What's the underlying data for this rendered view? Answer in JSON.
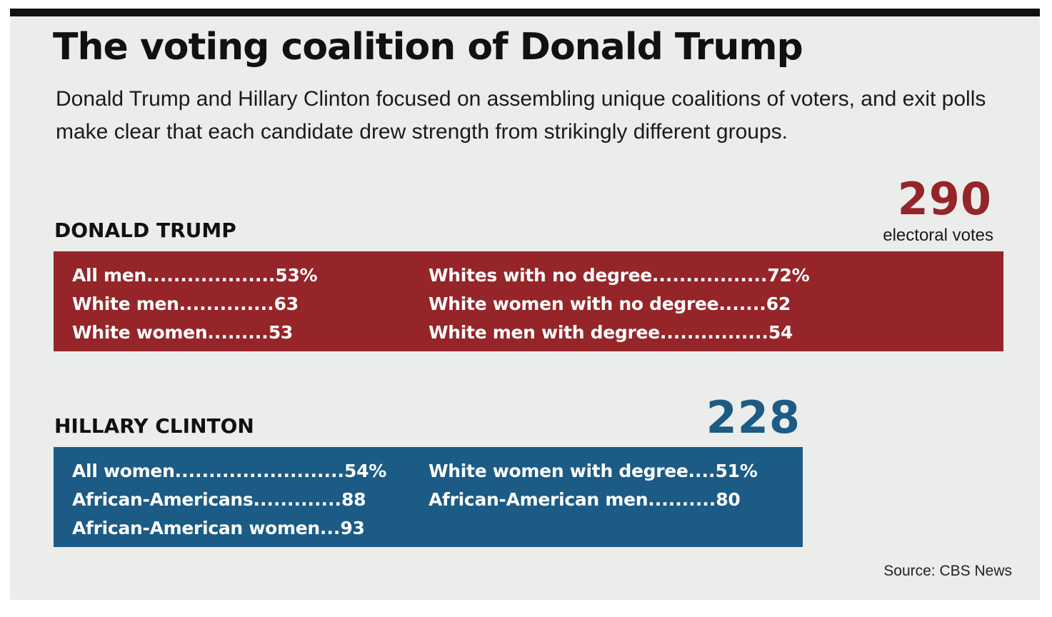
{
  "header": {
    "title": "The voting coalition of Donald Trump",
    "subtitle": "Donald Trump and Hillary Clinton focused on assembling unique coalitions of voters, and exit polls make clear that each candidate drew strength from strikingly different groups."
  },
  "chart_data": {
    "type": "table",
    "candidates": [
      {
        "name": "DONALD TRUMP",
        "electoral_votes": "290",
        "electoral_votes_label": "electoral votes",
        "color": "#952528",
        "columns": [
          [
            {
              "group": "All men",
              "leader": "...................",
              "value": "53%"
            },
            {
              "group": "White men",
              "leader": "..............",
              "value": "63"
            },
            {
              "group": "White women",
              "leader": ".........",
              "value": "53"
            }
          ],
          [
            {
              "group": "Whites with no degree",
              "leader": ".................",
              "value": "72%"
            },
            {
              "group": "White women with no degree",
              "leader": ".......",
              "value": "62"
            },
            {
              "group": "White men with degree",
              "leader": "................",
              "value": "54"
            }
          ]
        ]
      },
      {
        "name": "HILLARY CLINTON",
        "electoral_votes": "228",
        "color": "#1b5b85",
        "columns": [
          [
            {
              "group": "All women",
              "leader": ".........................",
              "value": "54%"
            },
            {
              "group": "African-Americans",
              "leader": ".............",
              "value": "88"
            },
            {
              "group": "African-American women",
              "leader": "...",
              "value": "93"
            }
          ],
          [
            {
              "group": "White women with degree",
              "leader": "....",
              "value": "51%"
            },
            {
              "group": "African-American men",
              "leader": "..........",
              "value": "80"
            }
          ]
        ]
      }
    ]
  },
  "footer": {
    "source": "Source: CBS News"
  }
}
